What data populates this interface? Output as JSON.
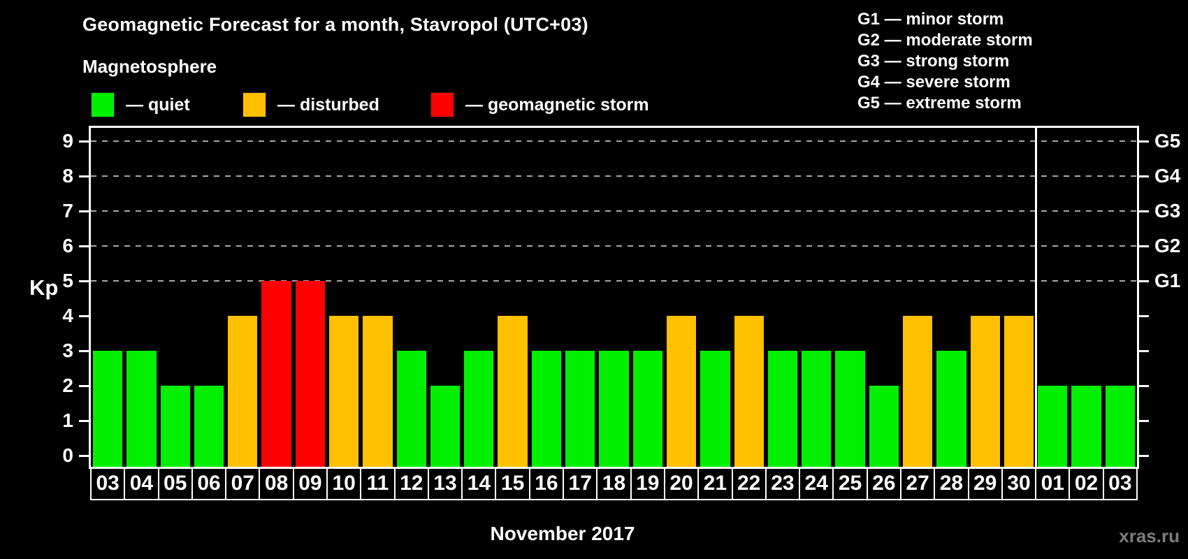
{
  "title": "Geomagnetic Forecast for a month, Stavropol (UTC+03)",
  "subtitle": "Magnetosphere",
  "legend": {
    "items": [
      {
        "status": "quiet",
        "label": "— quiet",
        "color": "#00F000"
      },
      {
        "status": "disturbed",
        "label": "— disturbed",
        "color": "#FFC000"
      },
      {
        "status": "storm",
        "label": "— geomagnetic storm",
        "color": "#FF0000"
      }
    ]
  },
  "g_scale_legend": [
    "G1 — minor storm",
    "G2 — moderate storm",
    "G3 — strong storm",
    "G4 — severe storm",
    "G5 — extreme storm"
  ],
  "watermark": "xras.ru",
  "chart_data": {
    "type": "bar",
    "title": "Geomagnetic Forecast for a month, Stavropol (UTC+03)",
    "xlabel": "November 2017",
    "ylabel": "Kp",
    "ylim": [
      0,
      9
    ],
    "y_ticks": [
      0,
      1,
      2,
      3,
      4,
      5,
      6,
      7,
      8,
      9
    ],
    "gridlines_at": [
      5,
      6,
      7,
      8,
      9
    ],
    "grid_style": "dashed gray horizontal lines at Kp 5-9 only",
    "right_axis_labels": [
      {
        "kp": 5,
        "label": "G1"
      },
      {
        "kp": 6,
        "label": "G2"
      },
      {
        "kp": 7,
        "label": "G3"
      },
      {
        "kp": 8,
        "label": "G4"
      },
      {
        "kp": 9,
        "label": "G5"
      }
    ],
    "categories": [
      "03",
      "04",
      "05",
      "06",
      "07",
      "08",
      "09",
      "10",
      "11",
      "12",
      "13",
      "14",
      "15",
      "16",
      "17",
      "18",
      "19",
      "20",
      "21",
      "22",
      "23",
      "24",
      "25",
      "26",
      "27",
      "28",
      "29",
      "30",
      "01",
      "02",
      "03"
    ],
    "values": [
      3,
      3,
      2,
      2,
      4,
      5,
      5,
      4,
      4,
      3,
      2,
      3,
      4,
      3,
      3,
      3,
      3,
      4,
      3,
      4,
      3,
      3,
      3,
      2,
      4,
      3,
      4,
      4,
      2,
      2,
      2
    ],
    "statuses": [
      "quiet",
      "quiet",
      "quiet",
      "quiet",
      "disturbed",
      "storm",
      "storm",
      "disturbed",
      "disturbed",
      "quiet",
      "quiet",
      "quiet",
      "disturbed",
      "quiet",
      "quiet",
      "quiet",
      "quiet",
      "disturbed",
      "quiet",
      "disturbed",
      "quiet",
      "quiet",
      "quiet",
      "quiet",
      "disturbed",
      "quiet",
      "disturbed",
      "disturbed",
      "quiet",
      "quiet",
      "quiet"
    ],
    "colors": {
      "quiet": "#00F000",
      "disturbed": "#FFC000",
      "storm": "#FF0000"
    },
    "month_separator_after_index": 27,
    "legend_position": "top-left",
    "background": "#000000"
  }
}
